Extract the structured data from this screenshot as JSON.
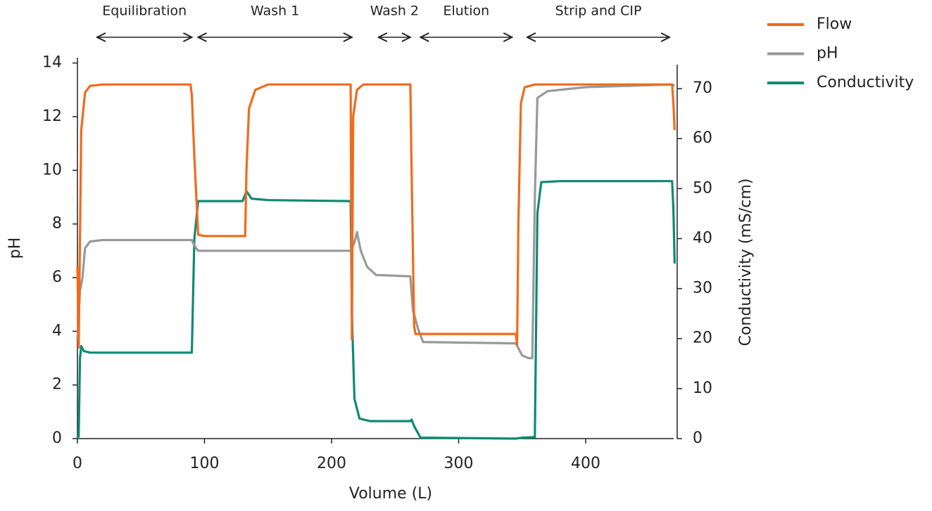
{
  "chart_data": {
    "type": "line",
    "xlabel": "Volume (L)",
    "ylabel": "pH",
    "y2label": "Conductivity (mS/cm)",
    "xlim": [
      0,
      472
    ],
    "xticks": [
      0,
      100,
      200,
      300,
      400
    ],
    "ylim": [
      0,
      14.2
    ],
    "yticks": [
      0,
      2,
      4,
      6,
      8,
      10,
      12,
      14
    ],
    "y2lim": [
      0,
      76.2
    ],
    "y2ticks": [
      0,
      10,
      20,
      30,
      40,
      50,
      60,
      70
    ],
    "annotations": [
      {
        "text": "Equilibration",
        "x": [
          15.5,
          90
        ]
      },
      {
        "text": "Wash 1",
        "x": [
          95,
          216
        ]
      },
      {
        "text": "Wash 2",
        "x": [
          237,
          262
        ]
      },
      {
        "text": "Elution",
        "x": [
          270,
          342
        ]
      },
      {
        "text": "Strip and CIP",
        "x": [
          354,
          466
        ]
      }
    ],
    "series": [
      {
        "name": "Flow",
        "color": "#f26a1b",
        "axis": "y",
        "x": [
          0,
          1,
          3,
          6,
          10,
          20,
          89,
          90,
          92,
          95,
          100,
          132,
          133,
          135,
          140,
          150,
          215,
          216,
          217,
          220,
          225,
          262,
          263,
          265,
          266,
          345,
          346,
          347,
          349,
          352,
          360,
          468,
          469,
          470
        ],
        "values": [
          6.4,
          3.4,
          11.5,
          12.9,
          13.15,
          13.2,
          13.2,
          12.8,
          10.5,
          7.6,
          7.55,
          7.55,
          10,
          12.3,
          13.0,
          13.2,
          13.2,
          3.7,
          12,
          13.0,
          13.2,
          13.2,
          10,
          4.2,
          3.9,
          3.9,
          3.5,
          8,
          12.5,
          13.1,
          13.2,
          13.2,
          12.5,
          11.5
        ]
      },
      {
        "name": "pH",
        "color": "#999999",
        "axis": "y",
        "x": [
          0,
          2,
          4,
          6,
          10,
          20,
          90,
          92,
          95,
          215,
          218,
          220,
          223,
          228,
          235,
          262,
          264,
          268,
          272,
          345,
          350,
          355,
          358,
          360,
          362,
          370,
          400,
          468,
          470
        ],
        "values": [
          3.7,
          5.5,
          6.0,
          7.1,
          7.35,
          7.4,
          7.4,
          7.2,
          7.0,
          7.0,
          7.3,
          7.7,
          7.0,
          6.4,
          6.1,
          6.05,
          4.8,
          4.1,
          3.6,
          3.55,
          3.1,
          3.0,
          3.0,
          9.0,
          12.7,
          12.95,
          13.1,
          13.2,
          13.15
        ]
      },
      {
        "name": "Conductivity",
        "color": "#0e8a73",
        "axis": "y2",
        "x": [
          0,
          1,
          2,
          3,
          5,
          10,
          90,
          92,
          95,
          130,
          133,
          137,
          150,
          215,
          216,
          218,
          222,
          230,
          262,
          263,
          265,
          270,
          345,
          350,
          360,
          362,
          365,
          380,
          468,
          469,
          470
        ],
        "values": [
          0,
          0.5,
          16,
          18.5,
          17.5,
          17.2,
          17.2,
          40,
          47.5,
          47.5,
          49.5,
          48,
          47.7,
          47.5,
          25,
          8,
          4,
          3.5,
          3.5,
          3.8,
          2.5,
          0.2,
          0,
          0.2,
          0.3,
          45,
          51.3,
          51.5,
          51.5,
          46,
          35
        ]
      }
    ]
  }
}
